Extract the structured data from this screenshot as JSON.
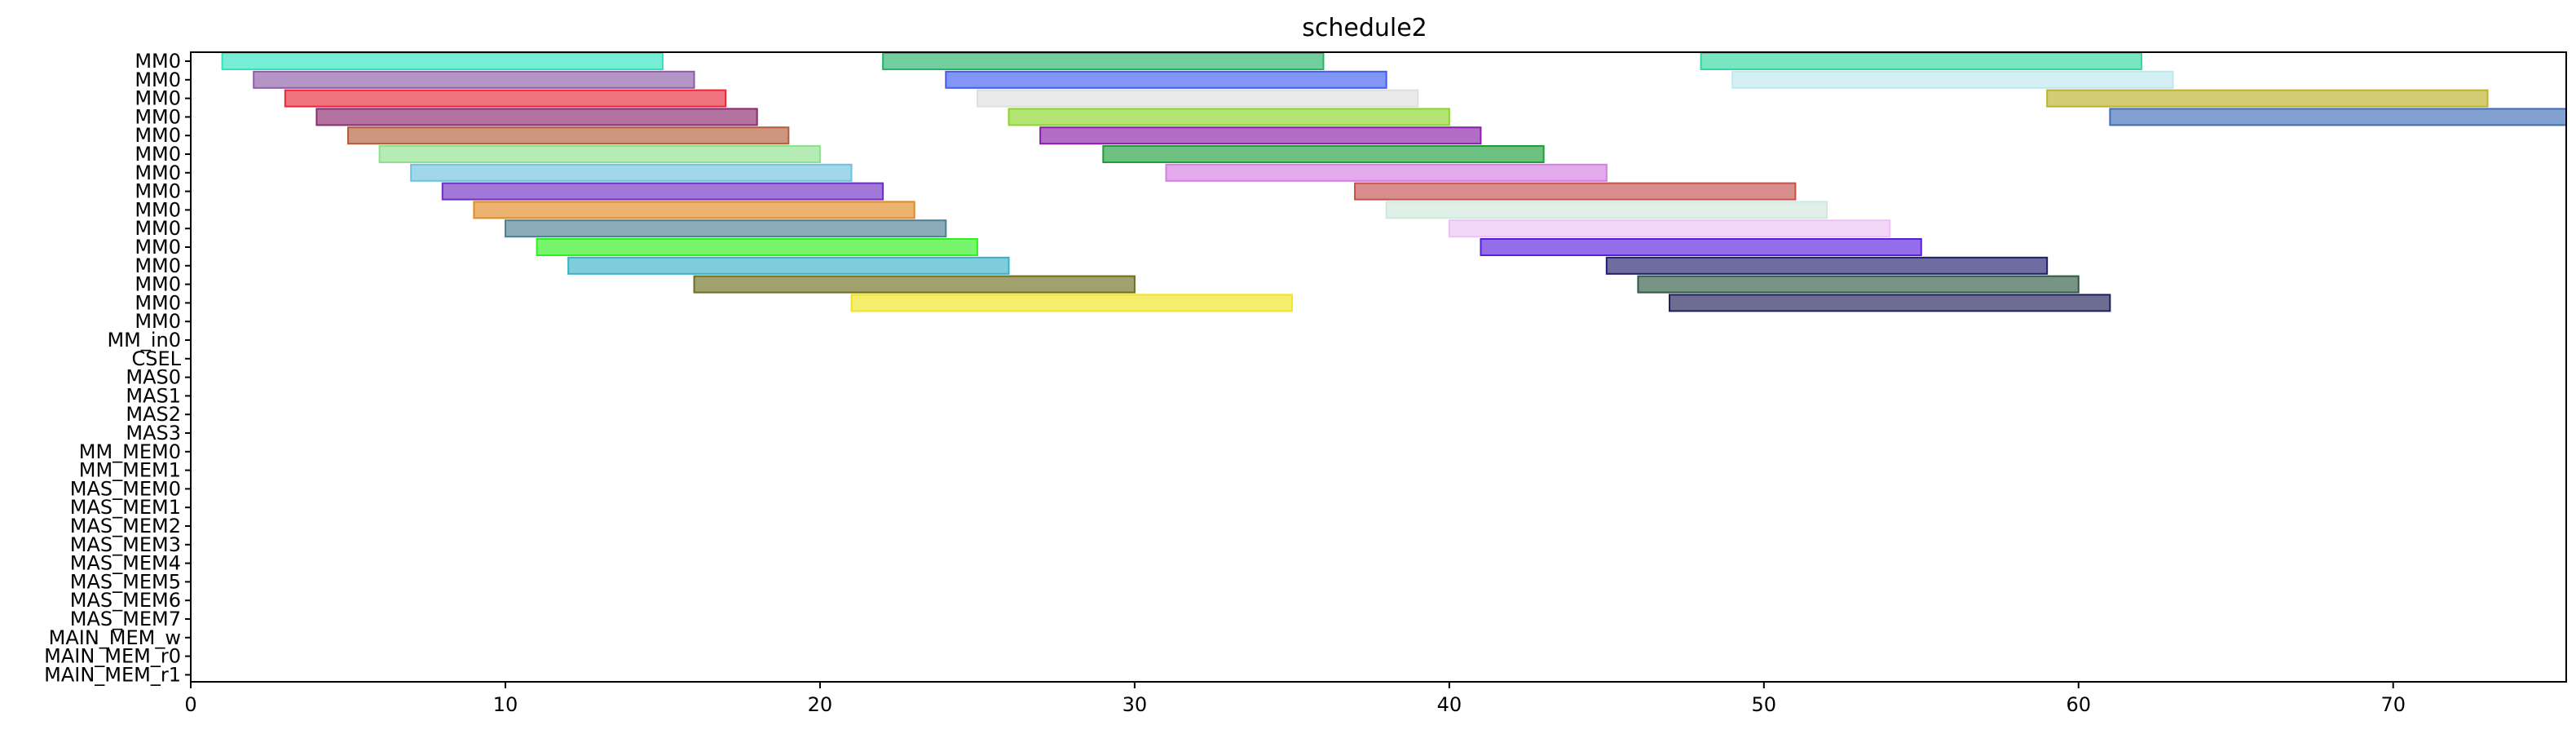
{
  "chart_data": {
    "type": "gantt",
    "title": "schedule2",
    "xlim": [
      0,
      75.5
    ],
    "x_ticks": [
      0,
      10,
      20,
      30,
      40,
      50,
      60,
      70
    ],
    "x_tick_labels": [
      "0",
      "10",
      "20",
      "30",
      "40",
      "50",
      "60",
      "70"
    ],
    "grid": false,
    "rows": [
      "MM0",
      "MM0",
      "MM0",
      "MM0",
      "MM0",
      "MM0",
      "MM0",
      "MM0",
      "MM0",
      "MM0",
      "MM0",
      "MM0",
      "MM0",
      "MM0",
      "MM0",
      "MM_in0",
      "CSEL",
      "MAS0",
      "MAS1",
      "MAS2",
      "MAS3",
      "MM_MEM0",
      "MM_MEM1",
      "MAS_MEM0",
      "MAS_MEM1",
      "MAS_MEM2",
      "MAS_MEM3",
      "MAS_MEM4",
      "MAS_MEM5",
      "MAS_MEM6",
      "MAS_MEM7",
      "MAIN_MEM_w",
      "MAIN_MEM_r0",
      "MAIN_MEM_r1"
    ],
    "tasks": [
      {
        "row": 0,
        "start": 1,
        "end": 15,
        "color": "#2ee3c0"
      },
      {
        "row": 0,
        "start": 22,
        "end": 36,
        "color": "#26b36a"
      },
      {
        "row": 0,
        "start": 48,
        "end": 62,
        "color": "#2fd8a0"
      },
      {
        "row": 1,
        "start": 2,
        "end": 16,
        "color": "#8e5ca8"
      },
      {
        "row": 1,
        "start": 24,
        "end": 38,
        "color": "#3f5ef0"
      },
      {
        "row": 1,
        "start": 49,
        "end": 63,
        "color": "#bde8f0"
      },
      {
        "row": 2,
        "start": 3,
        "end": 17,
        "color": "#e8283a"
      },
      {
        "row": 2,
        "start": 25,
        "end": 39,
        "color": "#dedede"
      },
      {
        "row": 2,
        "start": 59,
        "end": 73,
        "color": "#bdb22c"
      },
      {
        "row": 3,
        "start": 4,
        "end": 18,
        "color": "#8e2870"
      },
      {
        "row": 3,
        "start": 26,
        "end": 40,
        "color": "#8ad62a"
      },
      {
        "row": 3,
        "start": 61,
        "end": 75.5,
        "color": "#3f6eb8"
      },
      {
        "row": 4,
        "start": 5,
        "end": 19,
        "color": "#b35c3a"
      },
      {
        "row": 4,
        "start": 27,
        "end": 41,
        "color": "#8a1ea8"
      },
      {
        "row": 5,
        "start": 6,
        "end": 20,
        "color": "#8ee08e"
      },
      {
        "row": 5,
        "start": 29,
        "end": 43,
        "color": "#1e9e3a"
      },
      {
        "row": 6,
        "start": 7,
        "end": 21,
        "color": "#6ec2de"
      },
      {
        "row": 6,
        "start": 31,
        "end": 45,
        "color": "#d47ee0"
      },
      {
        "row": 7,
        "start": 8,
        "end": 22,
        "color": "#6e2ec2"
      },
      {
        "row": 7,
        "start": 37,
        "end": 51,
        "color": "#c2524e"
      },
      {
        "row": 8,
        "start": 9,
        "end": 23,
        "color": "#e08a22"
      },
      {
        "row": 8,
        "start": 38,
        "end": 52,
        "color": "#d0e8dc"
      },
      {
        "row": 9,
        "start": 10,
        "end": 24,
        "color": "#4e7e94"
      },
      {
        "row": 9,
        "start": 40,
        "end": 54,
        "color": "#ebc2f4"
      },
      {
        "row": 10,
        "start": 11,
        "end": 25,
        "color": "#2ef01e"
      },
      {
        "row": 10,
        "start": 41,
        "end": 55,
        "color": "#5a1ee0"
      },
      {
        "row": 11,
        "start": 12,
        "end": 26,
        "color": "#3ab0c8"
      },
      {
        "row": 11,
        "start": 45,
        "end": 59,
        "color": "#1e1e6e"
      },
      {
        "row": 12,
        "start": 16,
        "end": 30,
        "color": "#6e6e1e"
      },
      {
        "row": 12,
        "start": 46,
        "end": 60,
        "color": "#2e5a44"
      },
      {
        "row": 13,
        "start": 21,
        "end": 35,
        "color": "#f0e41e"
      },
      {
        "row": 13,
        "start": 47,
        "end": 61,
        "color": "#1e1e5a"
      }
    ]
  }
}
